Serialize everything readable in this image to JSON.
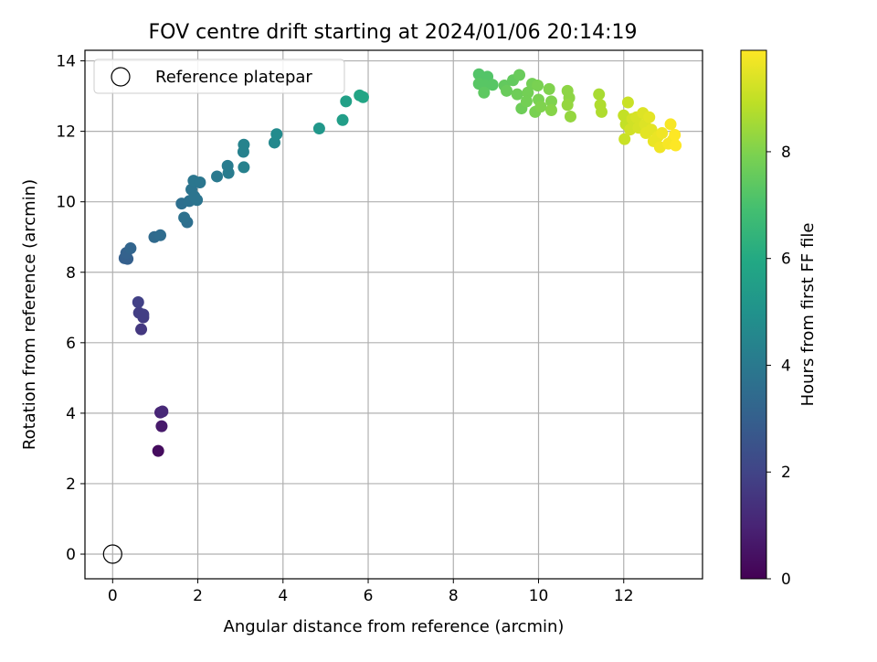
{
  "chart_data": {
    "type": "scatter",
    "title": "FOV centre drift starting at 2024/01/06 20:14:19",
    "xlabel": "Angular distance from reference (arcmin)",
    "ylabel": "Rotation from reference (arcmin)",
    "xlim": [
      -0.65,
      13.85
    ],
    "ylim": [
      -0.7,
      14.3
    ],
    "xticks": [
      0,
      2,
      4,
      6,
      8,
      10,
      12
    ],
    "yticks": [
      0,
      2,
      4,
      6,
      8,
      10,
      12,
      14
    ],
    "grid": true,
    "legend": {
      "position": "top-left",
      "entries": [
        "Reference platepar"
      ]
    },
    "reference_point": {
      "label": "Reference platepar",
      "x": 0,
      "y": 0,
      "marker": "open-circle"
    },
    "colorbar": {
      "label": "Hours from first FF file",
      "colormap": "viridis",
      "min": 0,
      "max": 9.9,
      "ticks": [
        0,
        2,
        4,
        6,
        8
      ]
    },
    "points": [
      {
        "x": 1.07,
        "y": 2.93,
        "c": 0.3
      },
      {
        "x": 1.15,
        "y": 3.63,
        "c": 0.7
      },
      {
        "x": 1.12,
        "y": 4.02,
        "c": 1.0
      },
      {
        "x": 1.17,
        "y": 4.05,
        "c": 1.1
      },
      {
        "x": 0.67,
        "y": 6.38,
        "c": 1.6
      },
      {
        "x": 0.72,
        "y": 6.72,
        "c": 1.7
      },
      {
        "x": 0.62,
        "y": 6.85,
        "c": 1.8
      },
      {
        "x": 0.72,
        "y": 6.8,
        "c": 1.8
      },
      {
        "x": 0.6,
        "y": 7.15,
        "c": 1.9
      },
      {
        "x": 0.35,
        "y": 8.38,
        "c": 3.0
      },
      {
        "x": 0.28,
        "y": 8.4,
        "c": 3.0
      },
      {
        "x": 0.32,
        "y": 8.55,
        "c": 3.1
      },
      {
        "x": 0.42,
        "y": 8.68,
        "c": 3.2
      },
      {
        "x": 0.98,
        "y": 9.0,
        "c": 3.4
      },
      {
        "x": 1.12,
        "y": 9.05,
        "c": 3.5
      },
      {
        "x": 1.62,
        "y": 9.95,
        "c": 3.6
      },
      {
        "x": 1.75,
        "y": 9.42,
        "c": 3.6
      },
      {
        "x": 1.68,
        "y": 9.55,
        "c": 3.7
      },
      {
        "x": 1.8,
        "y": 10.02,
        "c": 3.7
      },
      {
        "x": 1.85,
        "y": 10.35,
        "c": 3.8
      },
      {
        "x": 1.92,
        "y": 10.15,
        "c": 3.8
      },
      {
        "x": 1.98,
        "y": 10.05,
        "c": 3.8
      },
      {
        "x": 1.9,
        "y": 10.6,
        "c": 3.9
      },
      {
        "x": 2.05,
        "y": 10.55,
        "c": 3.9
      },
      {
        "x": 2.45,
        "y": 10.72,
        "c": 4.0
      },
      {
        "x": 2.72,
        "y": 10.82,
        "c": 4.1
      },
      {
        "x": 2.7,
        "y": 11.02,
        "c": 4.1
      },
      {
        "x": 3.08,
        "y": 10.98,
        "c": 4.3
      },
      {
        "x": 3.07,
        "y": 11.42,
        "c": 4.3
      },
      {
        "x": 3.08,
        "y": 11.62,
        "c": 4.4
      },
      {
        "x": 3.8,
        "y": 11.68,
        "c": 4.6
      },
      {
        "x": 3.85,
        "y": 11.92,
        "c": 4.7
      },
      {
        "x": 4.85,
        "y": 12.08,
        "c": 5.2
      },
      {
        "x": 5.4,
        "y": 12.32,
        "c": 5.5
      },
      {
        "x": 5.48,
        "y": 12.85,
        "c": 5.6
      },
      {
        "x": 5.8,
        "y": 13.02,
        "c": 5.8
      },
      {
        "x": 5.88,
        "y": 12.97,
        "c": 5.8
      },
      {
        "x": 8.6,
        "y": 13.62,
        "c": 7.2
      },
      {
        "x": 8.8,
        "y": 13.55,
        "c": 7.2
      },
      {
        "x": 8.6,
        "y": 13.35,
        "c": 7.3
      },
      {
        "x": 8.75,
        "y": 13.3,
        "c": 7.3
      },
      {
        "x": 8.92,
        "y": 13.32,
        "c": 7.3
      },
      {
        "x": 8.72,
        "y": 13.1,
        "c": 7.4
      },
      {
        "x": 9.2,
        "y": 13.3,
        "c": 7.5
      },
      {
        "x": 9.4,
        "y": 13.45,
        "c": 7.5
      },
      {
        "x": 9.55,
        "y": 13.6,
        "c": 7.6
      },
      {
        "x": 9.25,
        "y": 13.15,
        "c": 7.6
      },
      {
        "x": 9.5,
        "y": 13.05,
        "c": 7.7
      },
      {
        "x": 9.6,
        "y": 12.65,
        "c": 7.7
      },
      {
        "x": 9.75,
        "y": 13.1,
        "c": 7.8
      },
      {
        "x": 9.85,
        "y": 13.35,
        "c": 7.8
      },
      {
        "x": 9.72,
        "y": 12.85,
        "c": 7.8
      },
      {
        "x": 9.98,
        "y": 13.3,
        "c": 7.9
      },
      {
        "x": 10.0,
        "y": 12.9,
        "c": 7.9
      },
      {
        "x": 9.92,
        "y": 12.55,
        "c": 7.9
      },
      {
        "x": 10.25,
        "y": 13.2,
        "c": 8.0
      },
      {
        "x": 10.3,
        "y": 12.85,
        "c": 8.0
      },
      {
        "x": 10.3,
        "y": 12.6,
        "c": 8.1
      },
      {
        "x": 10.05,
        "y": 12.7,
        "c": 8.0
      },
      {
        "x": 10.68,
        "y": 13.15,
        "c": 8.2
      },
      {
        "x": 10.72,
        "y": 12.95,
        "c": 8.2
      },
      {
        "x": 10.68,
        "y": 12.75,
        "c": 8.3
      },
      {
        "x": 10.75,
        "y": 12.42,
        "c": 8.3
      },
      {
        "x": 11.42,
        "y": 13.05,
        "c": 8.6
      },
      {
        "x": 11.45,
        "y": 12.75,
        "c": 8.7
      },
      {
        "x": 11.48,
        "y": 12.55,
        "c": 8.7
      },
      {
        "x": 12.0,
        "y": 12.45,
        "c": 9.0
      },
      {
        "x": 12.05,
        "y": 12.2,
        "c": 9.0
      },
      {
        "x": 12.1,
        "y": 12.82,
        "c": 9.1
      },
      {
        "x": 12.02,
        "y": 11.78,
        "c": 9.1
      },
      {
        "x": 12.2,
        "y": 12.35,
        "c": 9.2
      },
      {
        "x": 12.15,
        "y": 12.05,
        "c": 9.2
      },
      {
        "x": 12.3,
        "y": 12.4,
        "c": 9.3
      },
      {
        "x": 12.35,
        "y": 12.1,
        "c": 9.3
      },
      {
        "x": 12.45,
        "y": 12.52,
        "c": 9.4
      },
      {
        "x": 12.5,
        "y": 12.2,
        "c": 9.4
      },
      {
        "x": 12.52,
        "y": 11.95,
        "c": 9.5
      },
      {
        "x": 12.6,
        "y": 12.4,
        "c": 9.5
      },
      {
        "x": 12.65,
        "y": 12.05,
        "c": 9.5
      },
      {
        "x": 12.7,
        "y": 11.72,
        "c": 9.6
      },
      {
        "x": 12.8,
        "y": 11.85,
        "c": 9.6
      },
      {
        "x": 12.85,
        "y": 11.55,
        "c": 9.7
      },
      {
        "x": 12.9,
        "y": 11.95,
        "c": 9.7
      },
      {
        "x": 13.05,
        "y": 11.65,
        "c": 9.8
      },
      {
        "x": 13.15,
        "y": 11.75,
        "c": 9.8
      },
      {
        "x": 13.2,
        "y": 11.9,
        "c": 9.9
      },
      {
        "x": 13.1,
        "y": 12.2,
        "c": 9.8
      },
      {
        "x": 13.22,
        "y": 11.6,
        "c": 9.9
      }
    ]
  }
}
